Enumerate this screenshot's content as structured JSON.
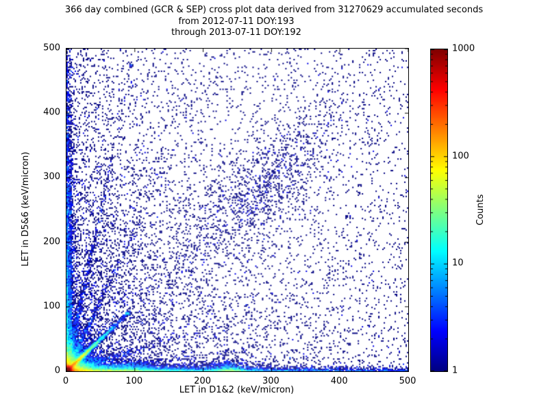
{
  "chart_data": {
    "type": "heatmap",
    "title": "366 day combined (GCR & SEP) cross plot data derived from 31270629 accumulated seconds",
    "subtitle1": "from 2012-07-11 DOY:193",
    "subtitle2": "through 2013-07-11 DOY:192",
    "xlabel": "LET in D1&2 (keV/micron)",
    "ylabel": "LET in D5&6 (keV/micron)",
    "xlim": [
      0,
      500
    ],
    "ylim": [
      0,
      500
    ],
    "xticks": [
      0,
      100,
      200,
      300,
      400,
      500
    ],
    "yticks": [
      0,
      100,
      200,
      300,
      400,
      500
    ],
    "grid": false,
    "background": "#ffffff",
    "colorbar": {
      "label": "Counts",
      "scale": "log",
      "min": 1,
      "max": 1000,
      "ticks": [
        1,
        10,
        100,
        1000
      ],
      "colormap": "jet"
    },
    "density_features": [
      {
        "type": "gaussian",
        "cx": 2,
        "cy": 2,
        "sx": 3,
        "sy": 3,
        "n": 15000,
        "note": "intense red/orange hotspot at origin, peak ~1000 counts"
      },
      {
        "type": "exp2",
        "mx": 12,
        "my": 12,
        "n": 10000,
        "note": "yellow-green glow hugging both axes near origin"
      },
      {
        "type": "ridge",
        "slope": 1,
        "tmean": 20,
        "tmax": 90,
        "sigma": 1.5,
        "n": 6000,
        "note": "bright green-cyan diagonal ridge y=x out to ~80"
      },
      {
        "type": "ridge",
        "slope": 5,
        "tmean": 25,
        "tmax": 95,
        "sigma": 2,
        "n": 650,
        "note": "faint steep ray from origin"
      },
      {
        "type": "ridge",
        "slope": 2.2,
        "tmean": 30,
        "tmax": 140,
        "sigma": 2.5,
        "n": 600,
        "note": "faint ray above diagonal"
      },
      {
        "type": "ridge",
        "slope": 0.32,
        "tmean": 40,
        "tmax": 200,
        "sigma": 2.5,
        "n": 650,
        "note": "faint ray below diagonal"
      },
      {
        "type": "ridge",
        "slope": 0.12,
        "tmean": 60,
        "tmax": 260,
        "sigma": 2,
        "n": 550,
        "note": "shallow ray near x-axis"
      },
      {
        "type": "exp2",
        "mx": 100,
        "my": 3,
        "n": 6000,
        "note": "dense band along x-axis fading with x"
      },
      {
        "type": "exp2",
        "mx": 420,
        "my": 2.5,
        "n": 3000,
        "note": "sparse bottom band out to x=500"
      },
      {
        "type": "exp2",
        "mx": 3,
        "my": 200,
        "n": 3000,
        "note": "band along y-axis fading upward"
      },
      {
        "type": "exp2",
        "mx": 60,
        "my": 250,
        "n": 1800,
        "note": "diffuse left-side scatter"
      },
      {
        "type": "gxey",
        "cx": 238,
        "sx": 14,
        "ymean": 4,
        "n": 1200,
        "note": "cyan clump on x-axis near x=240"
      },
      {
        "type": "gxey",
        "cx": 90,
        "sx": 20,
        "ymean": 5,
        "n": 800,
        "note": "enhanced bottom density near x=90"
      },
      {
        "type": "gxey",
        "cx": 6,
        "sx": 1.5,
        "ymean": 160,
        "n": 900,
        "note": "vertical streak near left edge"
      },
      {
        "type": "diagblob",
        "t": 285,
        "ts": 55,
        "ps": 28,
        "n": 1000,
        "note": "diffuse blue cloud along diagonal near (280,280)"
      },
      {
        "type": "uniform",
        "n": 3000,
        "note": "isolated single-count points over whole plane"
      },
      {
        "type": "exp2",
        "mx": 170,
        "my": 170,
        "n": 3500,
        "note": "scatter biased to lower-left quadrant"
      }
    ]
  }
}
